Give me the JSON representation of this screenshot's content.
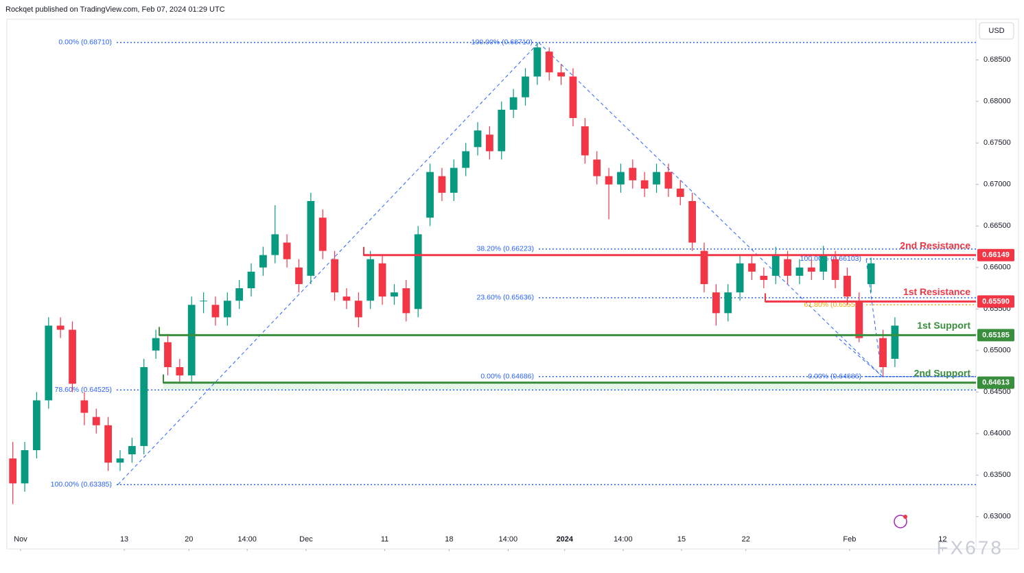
{
  "header": {
    "text": "Rockqet published on TradingView.com, Feb 07, 2024 01:29 UTC",
    "watermark": "FX678"
  },
  "chart_data": {
    "type": "candlestick",
    "currency": "USD",
    "up_color": "#089981",
    "down_color": "#f23645",
    "open": [
      0.637,
      0.634,
      0.638,
      0.644,
      0.653,
      0.6525,
      0.644,
      0.642,
      0.641,
      0.6365,
      0.6375,
      0.6385,
      0.65,
      0.651,
      0.648,
      0.647,
      0.656,
      0.6555,
      0.654,
      0.656,
      0.6575,
      0.66,
      0.6615,
      0.663,
      0.66,
      0.659,
      0.666,
      0.661,
      0.6565,
      0.656,
      0.656,
      0.6605,
      0.6565,
      0.6575,
      0.655,
      0.666,
      0.671,
      0.669,
      0.672,
      0.6745,
      0.676,
      0.674,
      0.679,
      0.6805,
      0.683,
      0.686,
      0.6835,
      0.683,
      0.677,
      0.673,
      0.671,
      0.67,
      0.672,
      0.6705,
      0.67,
      0.6715,
      0.6695,
      0.668,
      0.662,
      0.657,
      0.6545,
      0.657,
      0.6605,
      0.659,
      0.659,
      0.661,
      0.659,
      0.66,
      0.6595,
      0.661,
      0.659,
      0.656,
      0.658,
      0.6515,
      0.649
    ],
    "high": [
      0.639,
      0.639,
      0.645,
      0.654,
      0.654,
      0.6535,
      0.645,
      0.643,
      0.642,
      0.638,
      0.6395,
      0.649,
      0.6525,
      0.652,
      0.649,
      0.6565,
      0.657,
      0.6565,
      0.657,
      0.6585,
      0.6605,
      0.6625,
      0.6675,
      0.664,
      0.661,
      0.669,
      0.667,
      0.662,
      0.6575,
      0.657,
      0.662,
      0.6615,
      0.658,
      0.6585,
      0.665,
      0.6725,
      0.672,
      0.673,
      0.675,
      0.6775,
      0.677,
      0.68,
      0.6815,
      0.684,
      0.6871,
      0.6865,
      0.6845,
      0.684,
      0.678,
      0.674,
      0.672,
      0.6725,
      0.673,
      0.6715,
      0.6725,
      0.6725,
      0.6705,
      0.669,
      0.663,
      0.658,
      0.658,
      0.6615,
      0.6615,
      0.66,
      0.6625,
      0.662,
      0.661,
      0.661,
      0.6626,
      0.662,
      0.66,
      0.657,
      0.6612,
      0.6525,
      0.654
    ],
    "low": [
      0.6315,
      0.633,
      0.637,
      0.643,
      0.6515,
      0.645,
      0.641,
      0.64,
      0.6355,
      0.6355,
      0.6365,
      0.6375,
      0.649,
      0.647,
      0.646,
      0.646,
      0.6545,
      0.653,
      0.653,
      0.655,
      0.6565,
      0.659,
      0.6605,
      0.66,
      0.657,
      0.658,
      0.661,
      0.656,
      0.655,
      0.6528,
      0.655,
      0.6555,
      0.6555,
      0.6535,
      0.654,
      0.665,
      0.668,
      0.668,
      0.671,
      0.6735,
      0.673,
      0.673,
      0.678,
      0.6795,
      0.682,
      0.6825,
      0.682,
      0.677,
      0.6725,
      0.67,
      0.6658,
      0.669,
      0.6695,
      0.6685,
      0.669,
      0.6685,
      0.6675,
      0.662,
      0.657,
      0.653,
      0.6535,
      0.656,
      0.6585,
      0.6575,
      0.658,
      0.658,
      0.658,
      0.6585,
      0.6585,
      0.6575,
      0.6555,
      0.651,
      0.657,
      0.6469,
      0.648
    ],
    "close": [
      0.634,
      0.638,
      0.644,
      0.653,
      0.6525,
      0.646,
      0.6425,
      0.641,
      0.6365,
      0.637,
      0.6385,
      0.648,
      0.6515,
      0.648,
      0.647,
      0.6555,
      0.656,
      0.654,
      0.656,
      0.6575,
      0.6595,
      0.6615,
      0.664,
      0.661,
      0.658,
      0.668,
      0.662,
      0.657,
      0.656,
      0.654,
      0.661,
      0.6565,
      0.657,
      0.6545,
      0.664,
      0.6715,
      0.669,
      0.672,
      0.674,
      0.6765,
      0.674,
      0.679,
      0.6805,
      0.683,
      0.6865,
      0.6835,
      0.683,
      0.678,
      0.6735,
      0.671,
      0.67,
      0.6715,
      0.6705,
      0.6695,
      0.6715,
      0.6695,
      0.6685,
      0.663,
      0.658,
      0.6545,
      0.657,
      0.6605,
      0.6595,
      0.6585,
      0.6615,
      0.659,
      0.66,
      0.6595,
      0.6615,
      0.6585,
      0.6565,
      0.6515,
      0.6605,
      0.648,
      0.653
    ],
    "xlim": [
      0,
      81.3
    ],
    "xticks": [
      {
        "value": 1.15,
        "label": "Nov"
      },
      {
        "value": 9.85,
        "label": "13"
      },
      {
        "value": 15.27,
        "label": "20"
      },
      {
        "value": 20.16,
        "label": "14:00"
      },
      {
        "value": 25.1,
        "label": "Dec"
      },
      {
        "value": 31.7,
        "label": "11"
      },
      {
        "value": 37.1,
        "label": "18"
      },
      {
        "value": 42.05,
        "label": "14:00"
      },
      {
        "value": 46.8,
        "label": "2024"
      },
      {
        "value": 51.7,
        "label": "14:00"
      },
      {
        "value": 56.6,
        "label": "15"
      },
      {
        "value": 62.0,
        "label": "22"
      },
      {
        "value": 70.7,
        "label": "Feb"
      },
      {
        "value": 78.5,
        "label": "12"
      }
    ],
    "ylim": [
      0.6261,
      0.6899
    ],
    "yticks": [
      {
        "value": 0.63,
        "label": "0.63000"
      },
      {
        "value": 0.635,
        "label": "0.63500"
      },
      {
        "value": 0.64,
        "label": "0.64000"
      },
      {
        "value": 0.645,
        "label": "0.64500"
      },
      {
        "value": 0.65,
        "label": "0.65000"
      },
      {
        "value": 0.655,
        "label": "0.65500"
      },
      {
        "value": 0.66,
        "label": "0.66000"
      },
      {
        "value": 0.665,
        "label": "0.66500"
      },
      {
        "value": 0.67,
        "label": "0.67000"
      },
      {
        "value": 0.675,
        "label": "0.67500"
      },
      {
        "value": 0.68,
        "label": "0.68000"
      },
      {
        "value": 0.685,
        "label": "0.68500"
      }
    ],
    "levels": [
      {
        "name": "2nd Resistance",
        "value": 0.66149,
        "value_label": "0.66149",
        "color": "#f23645"
      },
      {
        "name": "1st Resistance",
        "value": 0.6559,
        "value_label": "0.65590",
        "color": "#f23645"
      },
      {
        "name": "1st Support",
        "value": 0.65185,
        "value_label": "0.65185",
        "color": "#388e3c"
      },
      {
        "name": "2nd Support",
        "value": 0.64613,
        "value_label": "0.64613",
        "color": "#388e3c"
      }
    ],
    "fib_levels": [
      {
        "label": "0.00% (0.68710)",
        "value": 0.6871,
        "color": "#2962ff"
      },
      {
        "label": "100.00% (0.68710)",
        "value": 0.6871,
        "color": "#2962ff"
      },
      {
        "label": "38.20% (0.66223)",
        "value": 0.66223,
        "color": "#2962ff"
      },
      {
        "label": "23.60% (0.65636)",
        "value": 0.65636,
        "color": "#2962ff"
      },
      {
        "label": "0.00% (0.64686)",
        "value": 0.64686,
        "color": "#2962ff"
      },
      {
        "label": "78.60% (0.64525)",
        "value": 0.64525,
        "color": "#2962ff"
      },
      {
        "label": "100.00% (0.63385)",
        "value": 0.63385,
        "color": "#2962ff"
      },
      {
        "label": "100.00% (0.66103)",
        "value": 0.66103,
        "color": "#2962ff"
      },
      {
        "label": "61.80% (0.65551)",
        "value": 0.65551,
        "color": "#f7a600"
      },
      {
        "label": "0.00% (0.64686)",
        "value": 0.64686,
        "color": "#2962ff"
      }
    ]
  }
}
